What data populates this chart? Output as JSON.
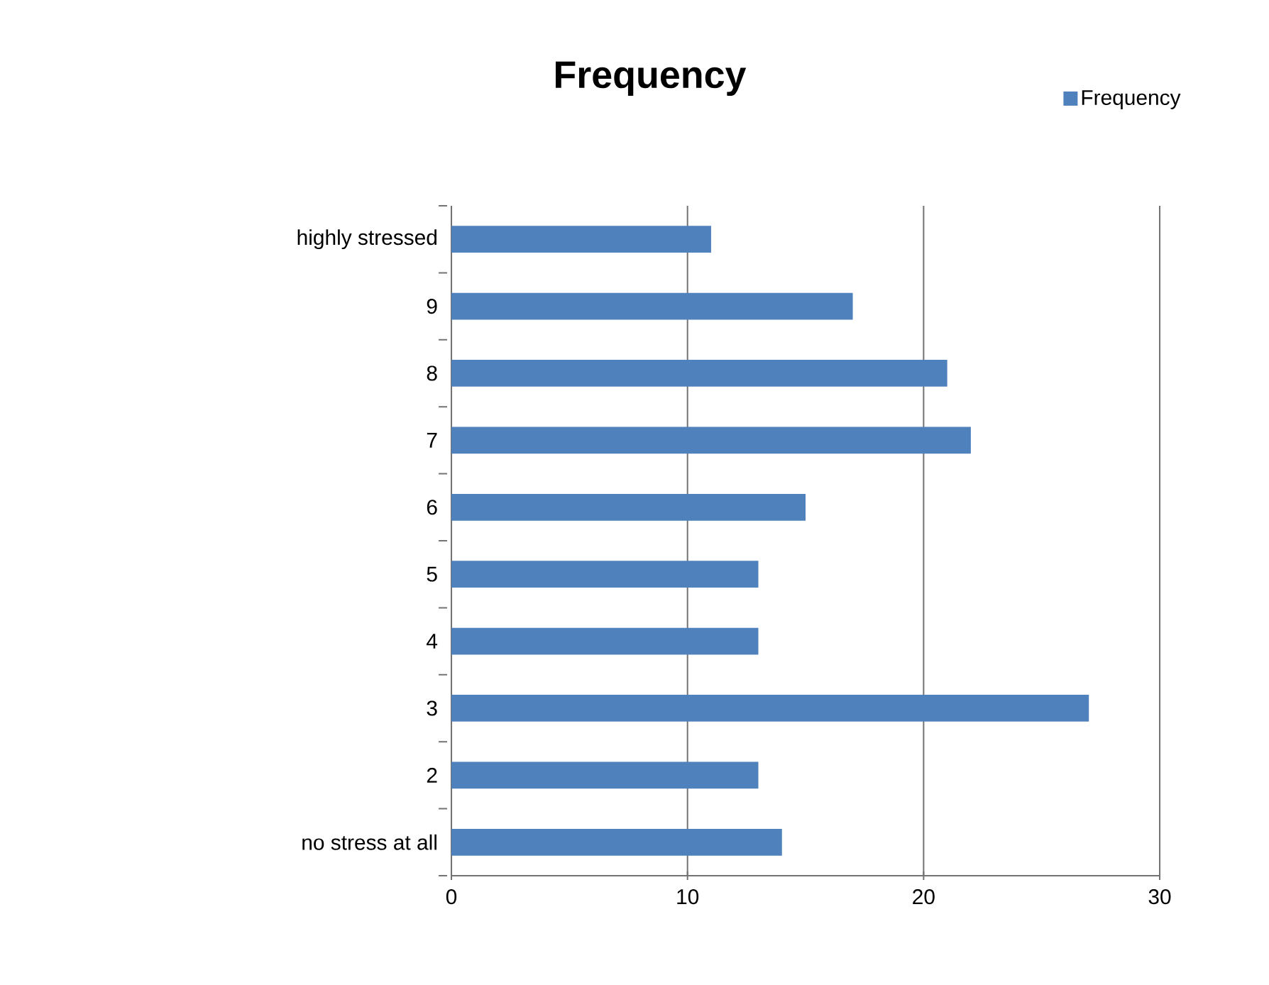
{
  "chart_data": {
    "type": "bar",
    "orientation": "horizontal",
    "title": "Frequency",
    "categories": [
      "highly stressed",
      "9",
      "8",
      "7",
      "6",
      "5",
      "4",
      "3",
      "2",
      "no stress at all"
    ],
    "series": [
      {
        "name": "Frequency",
        "color": "#4f81bd",
        "values": [
          11,
          17,
          21,
          22,
          15,
          13,
          13,
          27,
          13,
          14
        ]
      }
    ],
    "xlim": [
      0,
      30
    ],
    "xticks": [
      0,
      10,
      20,
      30
    ],
    "grid": "x",
    "legend": "top right"
  }
}
